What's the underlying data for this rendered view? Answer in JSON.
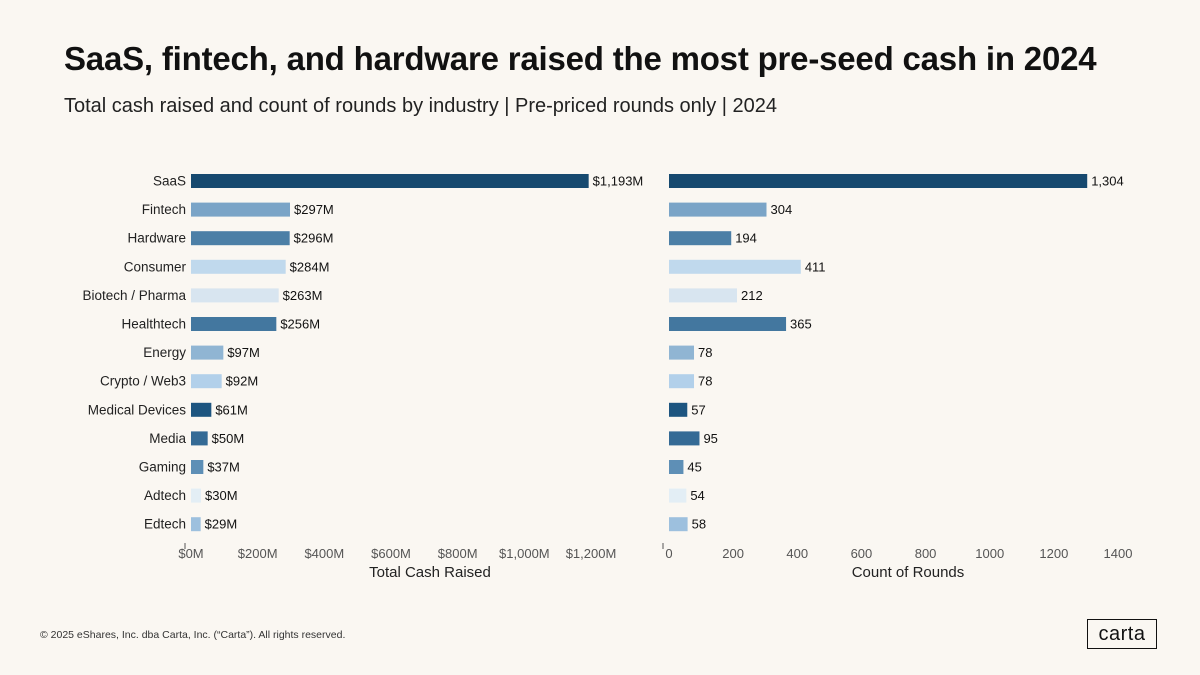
{
  "title": "SaaS, fintech, and hardware raised the most pre-seed cash in 2024",
  "subtitle": "Total cash raised and count of rounds by industry | Pre-priced rounds only | 2024",
  "footer": "© 2025 eShares, Inc. dba Carta, Inc. (“Carta”). All rights reserved.",
  "logo_text": "carta",
  "colors": {
    "SaaS": "#16496f",
    "Fintech": "#7aa4c7",
    "Hardware": "#4c7fa6",
    "Consumer": "#c0d9ed",
    "Biotech / Pharma": "#d8e5f0",
    "Healthtech": "#43779f",
    "Energy": "#90b5d3",
    "Crypto / Web3": "#b2d0ea",
    "Medical Devices": "#1d5580",
    "Media": "#346a95",
    "Gaming": "#5e8fb6",
    "Adtech": "#e3eef5",
    "Edtech": "#9dc0de"
  },
  "chart_data": [
    {
      "type": "bar",
      "orientation": "horizontal",
      "xlabel": "Total Cash Raised",
      "ylabel": "",
      "categories": [
        "SaaS",
        "Fintech",
        "Hardware",
        "Consumer",
        "Biotech / Pharma",
        "Healthtech",
        "Energy",
        "Crypto / Web3",
        "Medical Devices",
        "Media",
        "Gaming",
        "Adtech",
        "Edtech"
      ],
      "values": [
        1193,
        297,
        296,
        284,
        263,
        256,
        97,
        92,
        61,
        50,
        37,
        30,
        29
      ],
      "value_labels": [
        "$1,193M",
        "$297M",
        "$296M",
        "$284M",
        "$263M",
        "$256M",
        "$97M",
        "$92M",
        "$61M",
        "$50M",
        "$37M",
        "$30M",
        "$29M"
      ],
      "xlim": [
        0,
        1260
      ],
      "ticks": [
        0,
        200,
        400,
        600,
        800,
        1000,
        1200
      ],
      "tick_labels": [
        "$0M",
        "$200M",
        "$400M",
        "$600M",
        "$800M",
        "$1,000M",
        "$1,200M"
      ],
      "grid": false
    },
    {
      "type": "bar",
      "orientation": "horizontal",
      "xlabel": "Count of Rounds",
      "ylabel": "",
      "categories": [
        "SaaS",
        "Fintech",
        "Hardware",
        "Consumer",
        "Biotech / Pharma",
        "Healthtech",
        "Energy",
        "Crypto / Web3",
        "Medical Devices",
        "Media",
        "Gaming",
        "Adtech",
        "Edtech"
      ],
      "values": [
        1304,
        304,
        194,
        411,
        212,
        365,
        78,
        78,
        57,
        95,
        45,
        54,
        58
      ],
      "value_labels": [
        "1,304",
        "304",
        "194",
        "411",
        "212",
        "365",
        "78",
        "78",
        "57",
        "95",
        "45",
        "54",
        "58"
      ],
      "xlim": [
        0,
        1400
      ],
      "ticks": [
        0,
        200,
        400,
        600,
        800,
        1000,
        1200,
        1400
      ],
      "tick_labels": [
        "0",
        "200",
        "400",
        "600",
        "800",
        "1000",
        "1200",
        "1400"
      ],
      "grid": false
    }
  ]
}
